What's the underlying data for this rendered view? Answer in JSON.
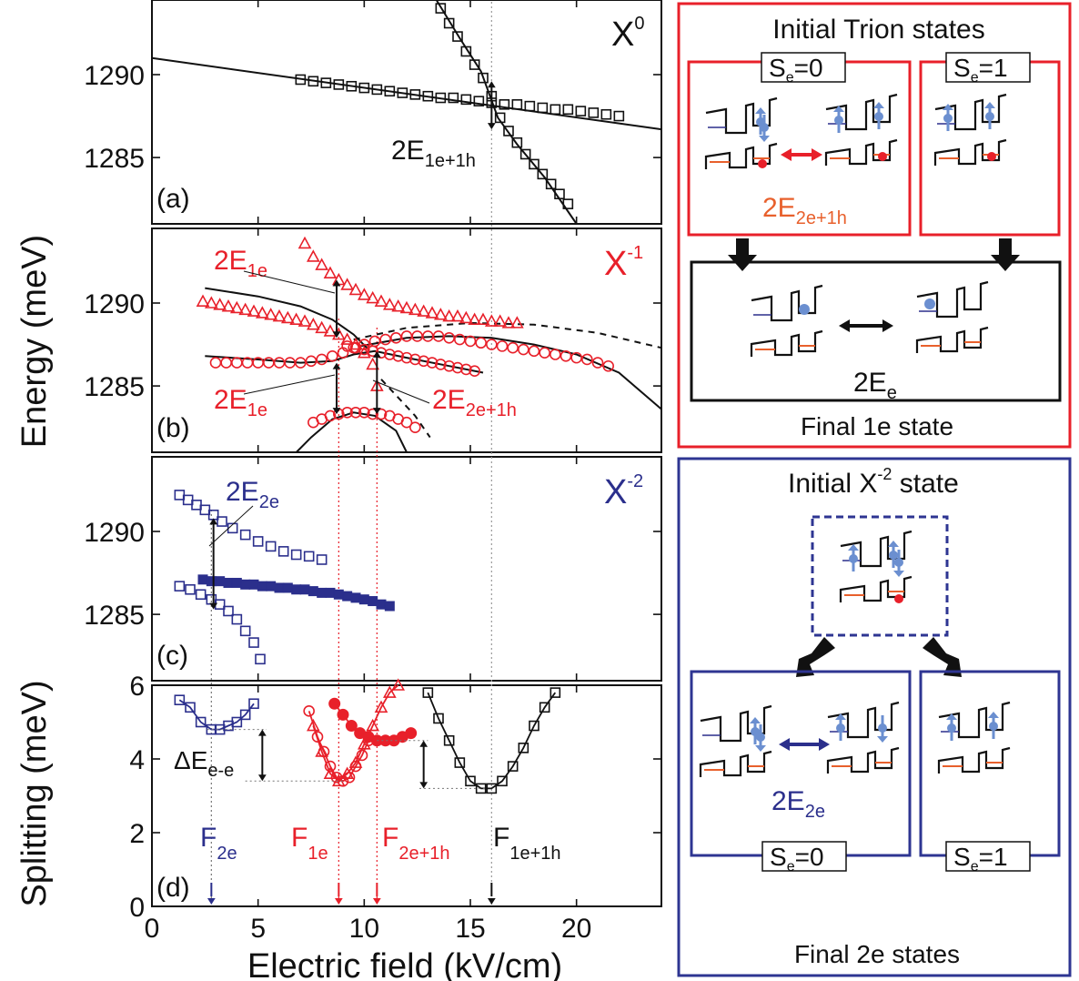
{
  "axes": {
    "ylabel_energy": "Energy (meV)",
    "ylabel_split": "Splitting (meV)",
    "xlabel": "Electric field (kV/cm)",
    "xticks": [
      "0",
      "5",
      "10",
      "15",
      "20"
    ],
    "yticks_energy": [
      "1285",
      "1290"
    ],
    "yticks_split": [
      "0",
      "2",
      "4",
      "6"
    ]
  },
  "panels": {
    "a": {
      "tag": "(a)",
      "species_main": "X",
      "species_sup": "0",
      "lab_main": "2E",
      "lab_sub": "1e+1h"
    },
    "b": {
      "tag": "(b)",
      "species_main": "X",
      "species_sup": "-1",
      "lab1_main": "2E",
      "lab1_sub": "1e",
      "lab2_main": "2E",
      "lab2_sub": "1e",
      "lab3_main": "2E",
      "lab3_sub": "2e+1h"
    },
    "c": {
      "tag": "(c)",
      "species_main": "X",
      "species_sup": "-2",
      "lab_main": "2E",
      "lab_sub": "2e"
    },
    "d": {
      "tag": "(d)",
      "de_main": "ΔE",
      "de_sub": "e-e",
      "f1_main": "F",
      "f1_sub": "2e",
      "f2_main": "F",
      "f2_sub": "1e",
      "f3_main": "F",
      "f3_sub": "2e+1h",
      "f4_main": "F",
      "f4_sub": "1e+1h"
    }
  },
  "schematics": {
    "trion": {
      "title": "Initial Trion states",
      "s0_main": "S",
      "s0_sub": "e",
      "s0_val": "=0",
      "s1_main": "S",
      "s1_sub": "e",
      "s1_val": "=1",
      "e2_main": "2E",
      "e2_sub": "2e+1h",
      "final_e_main": "2E",
      "final_e_sub": "e",
      "final_label": "Final 1e state"
    },
    "x2": {
      "title_a": "Initial X",
      "title_sup": "-2",
      "title_b": " state",
      "e_main": "2E",
      "e_sub": "2e",
      "s0_main": "S",
      "s0_sub": "e",
      "s0_val": "=0",
      "s1_main": "S",
      "s1_sub": "e",
      "s1_val": "=1",
      "final_label": "Final 2e states"
    }
  },
  "colors": {
    "black": "#111111",
    "red": "#e8202a",
    "blue": "#2b2f8c",
    "lightblue": "#6b8fd0",
    "orange": "#e8602c",
    "frame_red": "#e8202a",
    "frame_blue": "#2e3592"
  },
  "chart_data": [
    {
      "panel": "a",
      "type": "scatter",
      "marker": "open-square",
      "color": "#111111",
      "xlim": [
        0,
        24
      ],
      "ylim": [
        1281,
        1294.5
      ],
      "series": [
        {
          "x": [
            7,
            7.6,
            8.2,
            8.8,
            9.4,
            10,
            10.6,
            11.2,
            11.8,
            12.4,
            13,
            13.6,
            14.2,
            14.8,
            15.4,
            16,
            16.6,
            17.2,
            17.8,
            18.4,
            19,
            19.6,
            20.2,
            20.8,
            21.4,
            22
          ],
          "y": [
            1289.7,
            1289.6,
            1289.5,
            1289.4,
            1289.3,
            1289.2,
            1289.1,
            1289.0,
            1288.9,
            1288.8,
            1288.7,
            1288.6,
            1288.6,
            1288.5,
            1288.4,
            1288.3,
            1288.2,
            1288.2,
            1288.1,
            1288.0,
            1287.9,
            1287.9,
            1287.8,
            1287.7,
            1287.6,
            1287.5
          ]
        },
        {
          "x": [
            13.6,
            14.0,
            14.4,
            14.8,
            15.2,
            15.6,
            16.0,
            16.4,
            16.8,
            17.2,
            17.6,
            18.0,
            18.4,
            18.8,
            19.2,
            19.6
          ],
          "y": [
            1294.0,
            1293.1,
            1292.3,
            1291.4,
            1290.6,
            1289.8,
            1288.7,
            1287.4,
            1286.6,
            1285.9,
            1285.2,
            1284.6,
            1284.0,
            1283.4,
            1282.8,
            1282.2
          ]
        }
      ],
      "fits": [
        {
          "x": [
            0,
            24
          ],
          "y": [
            1291.0,
            1286.7
          ]
        },
        {
          "x": [
            13.4,
            14.5,
            15.5,
            16.3,
            17.2,
            18.5,
            20.0
          ],
          "y": [
            1294.5,
            1292.2,
            1290.2,
            1287.4,
            1285.8,
            1283.8,
            1281.0
          ]
        }
      ],
      "arrow": {
        "x": 16.0,
        "y": [
          1286.7,
          1289.6
        ]
      }
    },
    {
      "panel": "b",
      "type": "scatter",
      "color": "#e8202a",
      "xlim": [
        0,
        24
      ],
      "ylim": [
        1281,
        1294.5
      ],
      "series": [
        {
          "marker": "open-triangle",
          "x": [
            7.2,
            7.6,
            8.0,
            8.4,
            8.8,
            9.2,
            9.6,
            10.0,
            10.4,
            10.8,
            11.2,
            11.6,
            12.0,
            12.4,
            12.8,
            13.2,
            13.6,
            14.0,
            14.4,
            14.8,
            15.2,
            15.6,
            16.0,
            16.4,
            16.8,
            17.2
          ],
          "y": [
            1293.6,
            1292.8,
            1292.3,
            1291.8,
            1291.4,
            1291.1,
            1290.8,
            1290.5,
            1290.3,
            1290.1,
            1289.9,
            1289.8,
            1289.7,
            1289.6,
            1289.5,
            1289.4,
            1289.3,
            1289.2,
            1289.2,
            1289.1,
            1289.0,
            1289.0,
            1288.9,
            1288.9,
            1288.8,
            1288.8
          ]
        },
        {
          "marker": "open-triangle",
          "x": [
            2.4,
            2.8,
            3.2,
            3.6,
            4.0,
            4.4,
            4.8,
            5.2,
            5.6,
            6.0,
            6.4,
            6.8,
            7.2,
            7.6,
            8.0,
            8.4,
            8.8,
            9.2,
            9.6,
            10.0,
            10.4,
            10.6
          ],
          "y": [
            1290.1,
            1290.0,
            1289.9,
            1289.8,
            1289.7,
            1289.6,
            1289.5,
            1289.4,
            1289.3,
            1289.2,
            1289.1,
            1289.0,
            1288.9,
            1288.7,
            1288.5,
            1288.3,
            1288.1,
            1287.8,
            1287.5,
            1287.0,
            1286.3,
            1285.0
          ]
        },
        {
          "marker": "open-circle",
          "x": [
            3.0,
            3.5,
            4.0,
            4.5,
            5.0,
            5.5,
            6.0,
            6.5,
            7.0,
            7.5,
            8.0,
            8.5,
            9.0,
            9.5,
            10.0,
            10.5,
            11.0,
            11.5,
            12.0,
            12.5,
            13.0,
            13.5,
            14.0,
            14.5,
            15.0,
            15.5,
            16.0,
            16.5,
            17.0,
            17.5,
            18.0,
            18.5,
            19.0,
            19.5,
            20.0,
            20.5,
            21.0,
            21.5
          ],
          "y": [
            1286.4,
            1286.4,
            1286.4,
            1286.4,
            1286.4,
            1286.4,
            1286.4,
            1286.4,
            1286.4,
            1286.5,
            1286.6,
            1286.8,
            1287.0,
            1287.3,
            1287.5,
            1287.7,
            1287.8,
            1287.9,
            1288.0,
            1288.0,
            1288.0,
            1288.0,
            1287.9,
            1287.8,
            1287.7,
            1287.6,
            1287.5,
            1287.4,
            1287.3,
            1287.2,
            1287.1,
            1287.0,
            1286.9,
            1286.8,
            1286.7,
            1286.6,
            1286.4,
            1286.2
          ]
        },
        {
          "marker": "open-circle",
          "x": [
            9.2,
            9.6,
            10.0,
            10.4,
            10.8,
            11.2,
            11.6,
            12.0,
            12.4,
            12.8,
            13.2,
            13.6,
            14.0,
            14.4,
            14.8,
            15.2
          ],
          "y": [
            1287.4,
            1287.3,
            1287.2,
            1287.1,
            1287.0,
            1286.9,
            1286.8,
            1286.7,
            1286.6,
            1286.5,
            1286.4,
            1286.3,
            1286.2,
            1286.1,
            1286.0,
            1285.9
          ]
        },
        {
          "marker": "open-circle",
          "x": [
            7.6,
            8.0,
            8.4,
            8.8,
            9.2,
            9.6,
            10.0,
            10.4,
            10.8,
            11.2,
            11.6,
            12.0,
            12.4
          ],
          "y": [
            1282.8,
            1283.0,
            1283.2,
            1283.3,
            1283.4,
            1283.4,
            1283.4,
            1283.3,
            1283.3,
            1283.2,
            1283.0,
            1282.8,
            1282.5
          ]
        }
      ],
      "fits": [
        {
          "style": "solid",
          "x": [
            2.5,
            5,
            7,
            8.5,
            9.5,
            10.2
          ],
          "y": [
            1290.9,
            1290.4,
            1289.8,
            1289.0,
            1288.1,
            1287.2
          ]
        },
        {
          "style": "solid",
          "x": [
            2.5,
            5,
            7,
            8.5,
            9.5,
            10.5,
            12,
            14,
            15.6
          ],
          "y": [
            1286.8,
            1286.6,
            1286.4,
            1286.5,
            1286.9,
            1287.1,
            1286.7,
            1286.2,
            1285.8
          ]
        },
        {
          "style": "solid",
          "x": [
            9.8,
            12,
            14,
            16,
            18,
            20,
            22,
            24
          ],
          "y": [
            1287.4,
            1287.9,
            1288.0,
            1287.9,
            1287.5,
            1286.9,
            1285.8,
            1283.6
          ]
        },
        {
          "style": "solid",
          "x": [
            6.8,
            7.5,
            8.5,
            9.5,
            10.5,
            11.5,
            12.0
          ],
          "y": [
            1281.0,
            1281.9,
            1283.0,
            1283.4,
            1283.2,
            1282.3,
            1281.0
          ]
        },
        {
          "style": "dashed",
          "x": [
            9.5,
            12,
            15,
            18,
            21,
            24
          ],
          "y": [
            1287.8,
            1288.5,
            1288.8,
            1288.7,
            1288.2,
            1287.3
          ]
        },
        {
          "style": "dashed",
          "x": [
            10.8,
            11.6,
            12.4,
            13.1
          ],
          "y": [
            1285.4,
            1284.3,
            1283.2,
            1281.9
          ]
        }
      ],
      "arrows": [
        {
          "x": 8.7,
          "y": [
            1287.9,
            1291.4
          ]
        },
        {
          "x": 8.7,
          "y": [
            1283.3,
            1286.4
          ]
        },
        {
          "x": 10.6,
          "y": [
            1283.3,
            1287.1
          ]
        }
      ]
    },
    {
      "panel": "c",
      "type": "scatter",
      "color": "#2b2f8c",
      "xlim": [
        0,
        24
      ],
      "ylim": [
        1281,
        1294.5
      ],
      "series": [
        {
          "marker": "open-square",
          "x": [
            1.3,
            1.7,
            2.1,
            2.5,
            2.9,
            3.3,
            3.8,
            4.4,
            5.0,
            5.6,
            6.2,
            6.8,
            7.4,
            8.0
          ],
          "y": [
            1292.2,
            1291.9,
            1291.6,
            1291.3,
            1291.0,
            1290.6,
            1290.2,
            1289.8,
            1289.4,
            1289.1,
            1288.8,
            1288.6,
            1288.5,
            1288.3
          ]
        },
        {
          "marker": "filled-square",
          "x": [
            2.4,
            2.8,
            3.2,
            3.6,
            4.0,
            4.4,
            4.8,
            5.2,
            5.6,
            6.0,
            6.4,
            6.8,
            7.2,
            7.6,
            8.0,
            8.4,
            8.8,
            9.2,
            9.6,
            10.0,
            10.4,
            10.8,
            11.2
          ],
          "y": [
            1287.1,
            1287.0,
            1287.0,
            1286.9,
            1286.9,
            1286.8,
            1286.8,
            1286.7,
            1286.7,
            1286.6,
            1286.6,
            1286.5,
            1286.5,
            1286.4,
            1286.3,
            1286.3,
            1286.2,
            1286.1,
            1286.0,
            1285.9,
            1285.8,
            1285.6,
            1285.5
          ]
        },
        {
          "marker": "open-square",
          "x": [
            1.3,
            1.8,
            2.3,
            2.8,
            3.2,
            3.6,
            4.0,
            4.4,
            4.8,
            5.1
          ],
          "y": [
            1286.7,
            1286.5,
            1286.2,
            1285.9,
            1285.6,
            1285.2,
            1284.7,
            1284.0,
            1283.3,
            1282.3
          ]
        }
      ],
      "arrow": {
        "x": 2.9,
        "y": [
          1285.3,
          1290.8
        ]
      }
    },
    {
      "panel": "d",
      "type": "scatter",
      "xlim": [
        0,
        24
      ],
      "ylim": [
        0,
        6
      ],
      "series": [
        {
          "color": "#2b2f8c",
          "marker": "open-square",
          "x": [
            1.3,
            1.8,
            2.3,
            2.8,
            3.2,
            3.6,
            4.0,
            4.4,
            4.8
          ],
          "y": [
            5.6,
            5.4,
            5.0,
            4.8,
            4.8,
            4.9,
            5.0,
            5.2,
            5.5
          ]
        },
        {
          "color": "#e8202a",
          "marker": "open-circle",
          "x": [
            7.4,
            7.8,
            8.1,
            8.4,
            8.7,
            9.0,
            9.3,
            9.6,
            9.9,
            10.2
          ],
          "y": [
            5.3,
            4.6,
            4.2,
            3.8,
            3.5,
            3.4,
            3.5,
            3.8,
            4.1,
            4.5
          ]
        },
        {
          "color": "#e8202a",
          "marker": "open-triangle",
          "x": [
            7.6,
            8.0,
            8.4,
            8.8,
            9.2,
            9.6,
            10.0,
            10.4,
            10.8,
            11.2,
            11.6
          ],
          "y": [
            4.9,
            4.2,
            3.6,
            3.4,
            3.6,
            3.9,
            4.4,
            4.9,
            5.4,
            5.8,
            6.0
          ]
        },
        {
          "color": "#e8202a",
          "marker": "filled-circle",
          "x": [
            8.6,
            9.0,
            9.4,
            9.8,
            10.2,
            10.6,
            11.0,
            11.4,
            11.8,
            12.2
          ],
          "y": [
            5.5,
            5.2,
            4.9,
            4.7,
            4.6,
            4.5,
            4.5,
            4.5,
            4.6,
            4.7
          ]
        },
        {
          "color": "#111111",
          "marker": "open-square",
          "x": [
            13.0,
            13.5,
            14.0,
            14.5,
            15.0,
            15.5,
            16.0,
            16.5,
            17.0,
            17.5,
            18.0,
            18.5,
            19.0
          ],
          "y": [
            5.8,
            5.1,
            4.5,
            3.9,
            3.4,
            3.2,
            3.2,
            3.4,
            3.8,
            4.3,
            4.9,
            5.4,
            5.8
          ]
        }
      ],
      "markers": [
        {
          "x": 2.8,
          "color": "#2b2f8c"
        },
        {
          "x": 8.8,
          "color": "#e8202a"
        },
        {
          "x": 10.6,
          "color": "#e8202a"
        },
        {
          "x": 16.0,
          "color": "#111111"
        }
      ]
    }
  ]
}
